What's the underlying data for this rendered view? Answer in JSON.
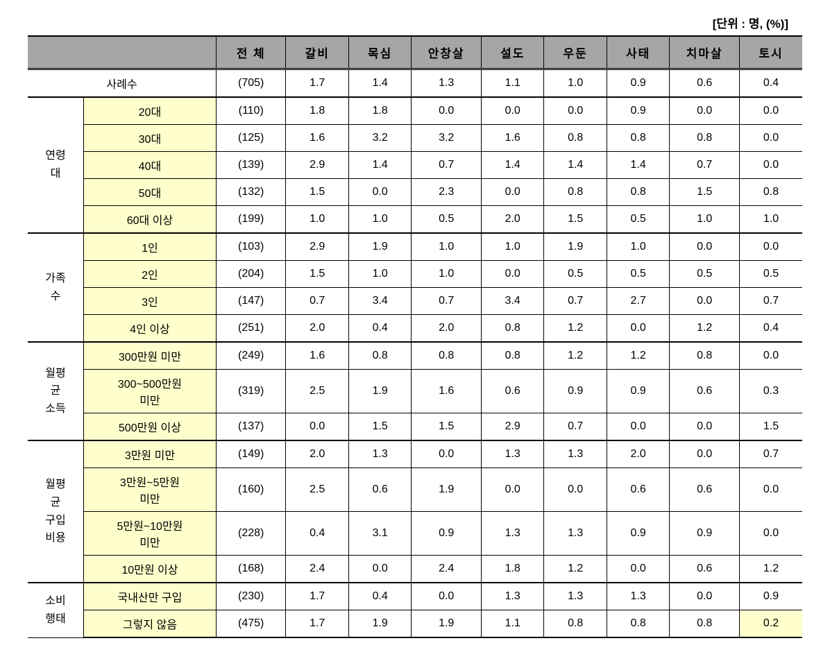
{
  "unit_label": "[단위 : 명, (%)]",
  "columns": {
    "blank": "",
    "total": "전 체",
    "galbi": "갈비",
    "moksim": "목심",
    "anchangsal": "안창살",
    "seoldo": "설도",
    "udun": "우둔",
    "satae": "사태",
    "chimasal": "치마살",
    "tosi": "토시"
  },
  "sample_row": {
    "label": "사례수",
    "values": [
      "(705)",
      "1.7",
      "1.4",
      "1.3",
      "1.1",
      "1.0",
      "0.9",
      "0.6",
      "0.4"
    ]
  },
  "groups": [
    {
      "label": "연령\n대",
      "rows": [
        {
          "label": "20대",
          "values": [
            "(110)",
            "1.8",
            "1.8",
            "0.0",
            "0.0",
            "0.0",
            "0.9",
            "0.0",
            "0.0"
          ]
        },
        {
          "label": "30대",
          "values": [
            "(125)",
            "1.6",
            "3.2",
            "3.2",
            "1.6",
            "0.8",
            "0.8",
            "0.8",
            "0.0"
          ]
        },
        {
          "label": "40대",
          "values": [
            "(139)",
            "2.9",
            "1.4",
            "0.7",
            "1.4",
            "1.4",
            "1.4",
            "0.7",
            "0.0"
          ]
        },
        {
          "label": "50대",
          "values": [
            "(132)",
            "1.5",
            "0.0",
            "2.3",
            "0.0",
            "0.8",
            "0.8",
            "1.5",
            "0.8"
          ]
        },
        {
          "label": "60대 이상",
          "values": [
            "(199)",
            "1.0",
            "1.0",
            "0.5",
            "2.0",
            "1.5",
            "0.5",
            "1.0",
            "1.0"
          ]
        }
      ]
    },
    {
      "label": "가족\n수",
      "rows": [
        {
          "label": "1인",
          "values": [
            "(103)",
            "2.9",
            "1.9",
            "1.0",
            "1.0",
            "1.9",
            "1.0",
            "0.0",
            "0.0"
          ]
        },
        {
          "label": "2인",
          "values": [
            "(204)",
            "1.5",
            "1.0",
            "1.0",
            "0.0",
            "0.5",
            "0.5",
            "0.5",
            "0.5"
          ]
        },
        {
          "label": "3인",
          "values": [
            "(147)",
            "0.7",
            "3.4",
            "0.7",
            "3.4",
            "0.7",
            "2.7",
            "0.0",
            "0.7"
          ]
        },
        {
          "label": "4인 이상",
          "values": [
            "(251)",
            "2.0",
            "0.4",
            "2.0",
            "0.8",
            "1.2",
            "0.0",
            "1.2",
            "0.4"
          ]
        }
      ]
    },
    {
      "label": "월평\n균\n소득",
      "rows": [
        {
          "label": "300만원 미만",
          "values": [
            "(249)",
            "1.6",
            "0.8",
            "0.8",
            "0.8",
            "1.2",
            "1.2",
            "0.8",
            "0.0"
          ]
        },
        {
          "label": "300~500만원\n미만",
          "values": [
            "(319)",
            "2.5",
            "1.9",
            "1.6",
            "0.6",
            "0.9",
            "0.9",
            "0.6",
            "0.3"
          ]
        },
        {
          "label": "500만원 이상",
          "values": [
            "(137)",
            "0.0",
            "1.5",
            "1.5",
            "2.9",
            "0.7",
            "0.0",
            "0.0",
            "1.5"
          ]
        }
      ]
    },
    {
      "label": "월평\n균\n구입\n비용",
      "rows": [
        {
          "label": "3만원 미만",
          "values": [
            "(149)",
            "2.0",
            "1.3",
            "0.0",
            "1.3",
            "1.3",
            "2.0",
            "0.0",
            "0.7"
          ]
        },
        {
          "label": "3만원~5만원\n미만",
          "values": [
            "(160)",
            "2.5",
            "0.6",
            "1.9",
            "0.0",
            "0.0",
            "0.6",
            "0.6",
            "0.0"
          ]
        },
        {
          "label": "5만원~10만원\n미만",
          "values": [
            "(228)",
            "0.4",
            "3.1",
            "0.9",
            "1.3",
            "1.3",
            "0.9",
            "0.9",
            "0.0"
          ]
        },
        {
          "label": "10만원 이상",
          "values": [
            "(168)",
            "2.4",
            "0.0",
            "2.4",
            "1.8",
            "1.2",
            "0.0",
            "0.6",
            "1.2"
          ]
        }
      ]
    },
    {
      "label": "소비\n행태",
      "rows": [
        {
          "label": "국내산만 구입",
          "values": [
            "(230)",
            "1.7",
            "0.4",
            "0.0",
            "1.3",
            "1.3",
            "1.3",
            "0.0",
            "0.9"
          ]
        },
        {
          "label": "그렇지 않음",
          "values": [
            "(475)",
            "1.7",
            "1.9",
            "1.9",
            "1.1",
            "0.8",
            "0.8",
            "0.8",
            "0.2"
          ],
          "highlight_last": true
        }
      ]
    }
  ]
}
